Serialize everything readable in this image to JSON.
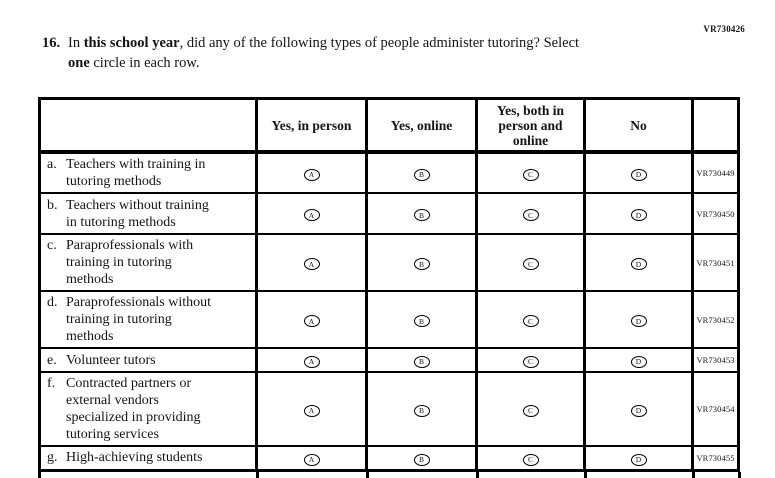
{
  "page_code": "VR730426",
  "question": {
    "number": "16.",
    "line1_pre": "In ",
    "line1_bold": "this school year",
    "line1_rest": ", did any of the following types of people administer tutoring? Select",
    "line2_bold": "one",
    "line2_rest": " circle in each row."
  },
  "table": {
    "headers": [
      "",
      "Yes, in person",
      "Yes, online",
      "Yes, both in\nperson and\nonline",
      "No",
      ""
    ],
    "options": [
      "A",
      "B",
      "C",
      "D"
    ],
    "rows": [
      {
        "letter": "a.",
        "label": "Teachers with training in\ntutoring methods",
        "code": "VR730449"
      },
      {
        "letter": "b.",
        "label": "Teachers without training\nin tutoring methods",
        "code": "VR730450"
      },
      {
        "letter": "c.",
        "label": "Paraprofessionals with\ntraining in tutoring\nmethods",
        "code": "VR730451"
      },
      {
        "letter": "d.",
        "label": "Paraprofessionals without\ntraining in tutoring\nmethods",
        "code": "VR730452"
      },
      {
        "letter": "e.",
        "label": "Volunteer tutors",
        "code": "VR730453"
      },
      {
        "letter": "f.",
        "label": "Contracted partners or\nexternal vendors\nspecialized in providing\ntutoring services",
        "code": "VR730454"
      },
      {
        "letter": "g.",
        "label": "High-achieving students",
        "code": "VR730455"
      }
    ]
  }
}
